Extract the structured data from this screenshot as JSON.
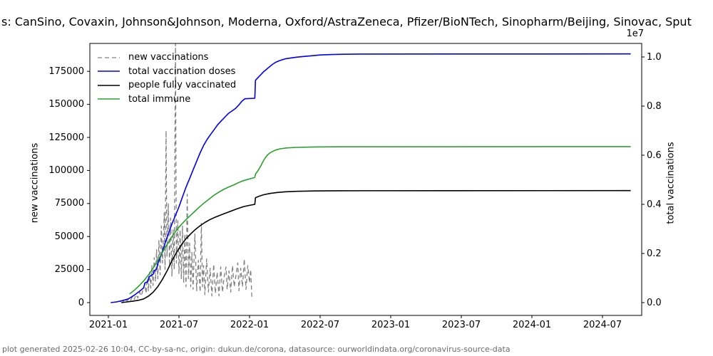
{
  "title": {
    "visible_text": "s: CanSino, Covaxin, Johnson&Johnson, Moderna, Oxford/AstraZeneca, Pfizer/BioNTech, Sinopharm/Beijing, Sinovac, Sput"
  },
  "footer": {
    "text": "plot generated 2025-02-26 10:04, CC-by-sa-nc, origin: dukun.de/corona, datasource: ourworldindata.org/coronavirus-source-data"
  },
  "chart_data": {
    "type": "line",
    "title": "s: CanSino, Covaxin, Johnson&Johnson, Moderna, Oxford/AstraZeneca, Pfizer/BioNTech, Sinopharm/Beijing, Sinovac, Sput",
    "x_axis": {
      "tick_labels": [
        "2021-01",
        "2021-07",
        "2022-01",
        "2022-07",
        "2023-01",
        "2023-07",
        "2024-01",
        "2024-07"
      ],
      "tick_months": [
        0,
        6,
        12,
        18,
        24,
        30,
        36,
        42
      ],
      "note": "x unit = months since 2021-01-01",
      "xlim_months": [
        -1.6,
        45.3
      ]
    },
    "left_axis": {
      "label": "new vaccinations",
      "tick_values": [
        0,
        25000,
        50000,
        75000,
        100000,
        125000,
        150000,
        175000
      ],
      "tick_labels": [
        "0",
        "25000",
        "50000",
        "75000",
        "100000",
        "125000",
        "150000",
        "175000"
      ],
      "ylim": [
        -9700,
        196000
      ]
    },
    "right_axis": {
      "label": "total vaccinations",
      "offset_label": "1e7",
      "tick_values": [
        0,
        2000000,
        4000000,
        6000000,
        8000000,
        10000000
      ],
      "tick_labels": [
        "0.0",
        "0.2",
        "0.4",
        "0.6",
        "0.8",
        "1.0"
      ],
      "ylim": [
        -520000,
        10550000
      ]
    },
    "legend": {
      "position": "upper left",
      "frame": false
    },
    "grid": false,
    "series": [
      {
        "name": "new vaccinations",
        "color": "#808080",
        "dash": "6,4",
        "width": 1.3,
        "axis": "left",
        "points": [
          [
            1.0,
            500
          ],
          [
            1.15,
            1500
          ],
          [
            1.3,
            800
          ],
          [
            1.45,
            2500
          ],
          [
            1.6,
            1200
          ],
          [
            1.75,
            3000
          ],
          [
            1.9,
            1800
          ],
          [
            2.05,
            4500
          ],
          [
            2.2,
            2500
          ],
          [
            2.35,
            6000
          ],
          [
            2.5,
            3500
          ],
          [
            2.65,
            8000
          ],
          [
            2.8,
            5000
          ],
          [
            2.95,
            10000
          ],
          [
            3.1,
            14000
          ],
          [
            3.2,
            7000
          ],
          [
            3.3,
            18000
          ],
          [
            3.4,
            9000
          ],
          [
            3.5,
            23000
          ],
          [
            3.6,
            11000
          ],
          [
            3.7,
            28000
          ],
          [
            3.8,
            13000
          ],
          [
            3.9,
            34000
          ],
          [
            4.0,
            16000
          ],
          [
            4.1,
            40000
          ],
          [
            4.2,
            18000
          ],
          [
            4.3,
            47000
          ],
          [
            4.4,
            21000
          ],
          [
            4.5,
            58000
          ],
          [
            4.6,
            30000
          ],
          [
            4.75,
            68000
          ],
          [
            4.82,
            25000
          ],
          [
            4.9,
            130000
          ],
          [
            4.98,
            35000
          ],
          [
            5.1,
            75000
          ],
          [
            5.2,
            28000
          ],
          [
            5.3,
            64000
          ],
          [
            5.4,
            20000
          ],
          [
            5.5,
            55000
          ],
          [
            5.6,
            25000
          ],
          [
            5.7,
            196000
          ],
          [
            5.78,
            30000
          ],
          [
            5.9,
            62000
          ],
          [
            6.0,
            22000
          ],
          [
            6.1,
            55000
          ],
          [
            6.2,
            18000
          ],
          [
            6.3,
            58000
          ],
          [
            6.4,
            15000
          ],
          [
            6.5,
            52000
          ],
          [
            6.6,
            12000
          ],
          [
            6.7,
            82000
          ],
          [
            6.8,
            18000
          ],
          [
            6.9,
            45000
          ],
          [
            7.0,
            12000
          ],
          [
            7.1,
            38000
          ],
          [
            7.2,
            10000
          ],
          [
            7.35,
            52000
          ],
          [
            7.5,
            9000
          ],
          [
            7.65,
            32000
          ],
          [
            7.8,
            8000
          ],
          [
            7.9,
            60000
          ],
          [
            8.0,
            12000
          ],
          [
            8.1,
            28000
          ],
          [
            8.2,
            6000
          ],
          [
            8.35,
            33000
          ],
          [
            8.5,
            8000
          ],
          [
            8.65,
            26000
          ],
          [
            8.8,
            5000
          ],
          [
            8.95,
            29000
          ],
          [
            9.1,
            7000
          ],
          [
            9.25,
            23000
          ],
          [
            9.4,
            5000
          ],
          [
            9.55,
            27000
          ],
          [
            9.7,
            8000
          ],
          [
            9.85,
            20000
          ],
          [
            10.0,
            27000
          ],
          [
            10.1,
            10000
          ],
          [
            10.25,
            24000
          ],
          [
            10.4,
            8000
          ],
          [
            10.55,
            28000
          ],
          [
            10.7,
            12000
          ],
          [
            10.85,
            21000
          ],
          [
            11.0,
            30000
          ],
          [
            11.1,
            9000
          ],
          [
            11.25,
            26000
          ],
          [
            11.4,
            12000
          ],
          [
            11.55,
            33000
          ],
          [
            11.7,
            10000
          ],
          [
            11.85,
            28000
          ],
          [
            12.0,
            15000
          ],
          [
            12.1,
            25000
          ],
          [
            12.2,
            3000
          ]
        ]
      },
      {
        "name": "total vaccination doses",
        "color": "#0000ee",
        "dash": null,
        "width": 1.6,
        "axis": "right",
        "points": [
          [
            0.2,
            0
          ],
          [
            0.7,
            30000
          ],
          [
            1.2,
            80000
          ],
          [
            1.7,
            150000
          ],
          [
            2.2,
            300000
          ],
          [
            2.7,
            480000
          ],
          [
            3.0,
            600000
          ],
          [
            3.1,
            800000
          ],
          [
            3.35,
            850000
          ],
          [
            3.45,
            1050000
          ],
          [
            3.8,
            1150000
          ],
          [
            3.9,
            1300000
          ],
          [
            4.1,
            1350000
          ],
          [
            4.2,
            1600000
          ],
          [
            4.5,
            1950000
          ],
          [
            4.8,
            2400000
          ],
          [
            5.1,
            2800000
          ],
          [
            5.4,
            3200000
          ],
          [
            5.7,
            3550000
          ],
          [
            6.0,
            3900000
          ],
          [
            6.3,
            4300000
          ],
          [
            6.6,
            4700000
          ],
          [
            6.9,
            5050000
          ],
          [
            7.2,
            5400000
          ],
          [
            7.5,
            5750000
          ],
          [
            7.8,
            6100000
          ],
          [
            8.1,
            6400000
          ],
          [
            8.4,
            6650000
          ],
          [
            8.7,
            6850000
          ],
          [
            9.0,
            7050000
          ],
          [
            9.3,
            7250000
          ],
          [
            9.6,
            7400000
          ],
          [
            9.9,
            7550000
          ],
          [
            10.2,
            7700000
          ],
          [
            10.5,
            7800000
          ],
          [
            10.8,
            7900000
          ],
          [
            11.1,
            8050000
          ],
          [
            11.35,
            8200000
          ],
          [
            11.6,
            8300000
          ],
          [
            12.45,
            8320000
          ],
          [
            12.5,
            9050000
          ],
          [
            12.6,
            9100000
          ],
          [
            12.8,
            9200000
          ],
          [
            13.0,
            9300000
          ],
          [
            13.2,
            9400000
          ],
          [
            13.45,
            9500000
          ],
          [
            13.7,
            9600000
          ],
          [
            13.95,
            9700000
          ],
          [
            14.2,
            9780000
          ],
          [
            14.5,
            9840000
          ],
          [
            14.8,
            9890000
          ],
          [
            15.1,
            9930000
          ],
          [
            15.5,
            9960000
          ],
          [
            16.0,
            9990000
          ],
          [
            16.6,
            10020000
          ],
          [
            17.3,
            10050000
          ],
          [
            18.0,
            10080000
          ],
          [
            19.0,
            10100000
          ],
          [
            20.0,
            10110000
          ],
          [
            21.5,
            10120000
          ],
          [
            44.4,
            10125000
          ]
        ]
      },
      {
        "name": "people fully vaccinated",
        "color": "#000000",
        "dash": null,
        "width": 1.6,
        "axis": "right",
        "points": [
          [
            1.1,
            0
          ],
          [
            1.6,
            30000
          ],
          [
            2.1,
            60000
          ],
          [
            2.6,
            100000
          ],
          [
            3.0,
            150000
          ],
          [
            3.4,
            260000
          ],
          [
            3.8,
            420000
          ],
          [
            4.2,
            650000
          ],
          [
            4.6,
            950000
          ],
          [
            5.0,
            1300000
          ],
          [
            5.4,
            1700000
          ],
          [
            5.8,
            2050000
          ],
          [
            6.2,
            2350000
          ],
          [
            6.6,
            2600000
          ],
          [
            7.0,
            2800000
          ],
          [
            7.4,
            2980000
          ],
          [
            7.8,
            3130000
          ],
          [
            8.2,
            3260000
          ],
          [
            8.6,
            3370000
          ],
          [
            9.0,
            3460000
          ],
          [
            9.5,
            3560000
          ],
          [
            10.0,
            3650000
          ],
          [
            10.5,
            3740000
          ],
          [
            11.0,
            3830000
          ],
          [
            11.5,
            3910000
          ],
          [
            12.0,
            3960000
          ],
          [
            12.45,
            4000000
          ],
          [
            12.5,
            4270000
          ],
          [
            12.8,
            4330000
          ],
          [
            13.2,
            4390000
          ],
          [
            13.7,
            4440000
          ],
          [
            14.3,
            4480000
          ],
          [
            15.0,
            4510000
          ],
          [
            16.0,
            4530000
          ],
          [
            17.5,
            4545000
          ],
          [
            19.5,
            4555000
          ],
          [
            44.4,
            4560000
          ]
        ]
      },
      {
        "name": "total immune",
        "color": "#2ca02c",
        "dash": null,
        "width": 1.6,
        "axis": "right",
        "points": [
          [
            1.8,
            350000
          ],
          [
            2.2,
            500000
          ],
          [
            2.6,
            680000
          ],
          [
            3.0,
            880000
          ],
          [
            3.4,
            1120000
          ],
          [
            3.8,
            1400000
          ],
          [
            4.2,
            1720000
          ],
          [
            4.6,
            2050000
          ],
          [
            5.0,
            2380000
          ],
          [
            5.4,
            2680000
          ],
          [
            5.8,
            2950000
          ],
          [
            6.2,
            3180000
          ],
          [
            6.6,
            3380000
          ],
          [
            7.0,
            3560000
          ],
          [
            7.4,
            3740000
          ],
          [
            7.8,
            3920000
          ],
          [
            8.2,
            4080000
          ],
          [
            8.6,
            4230000
          ],
          [
            9.0,
            4380000
          ],
          [
            9.4,
            4500000
          ],
          [
            9.8,
            4610000
          ],
          [
            10.2,
            4700000
          ],
          [
            10.6,
            4780000
          ],
          [
            11.0,
            4870000
          ],
          [
            11.4,
            4950000
          ],
          [
            11.8,
            5010000
          ],
          [
            12.2,
            5060000
          ],
          [
            12.45,
            5100000
          ],
          [
            12.5,
            5230000
          ],
          [
            12.7,
            5360000
          ],
          [
            12.9,
            5520000
          ],
          [
            13.1,
            5700000
          ],
          [
            13.3,
            5870000
          ],
          [
            13.5,
            6000000
          ],
          [
            13.7,
            6080000
          ],
          [
            13.9,
            6140000
          ],
          [
            14.2,
            6210000
          ],
          [
            14.6,
            6260000
          ],
          [
            15.2,
            6300000
          ],
          [
            16.0,
            6320000
          ],
          [
            17.5,
            6335000
          ],
          [
            20.0,
            6345000
          ],
          [
            44.4,
            6350000
          ]
        ]
      }
    ]
  }
}
